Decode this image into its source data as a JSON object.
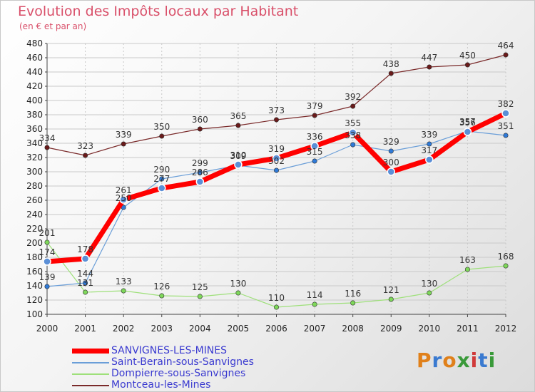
{
  "title": "Evolution des Impôts locaux par Habitant",
  "subtitle": "(en € et par an)",
  "logo": {
    "text": "Proxiti",
    "colors": [
      "#e0801a",
      "#3a7ad0",
      "#e0801a",
      "#3a9a3a",
      "#d03a3a",
      "#3a7ad0",
      "#3a9a3a"
    ]
  },
  "chart_data": {
    "type": "line",
    "title": "Evolution des Impôts locaux par Habitant",
    "subtitle": "(en € et par an)",
    "xlabel": "",
    "ylabel": "",
    "x": [
      "2000",
      "2001",
      "2002",
      "2003",
      "2004",
      "2005",
      "2006",
      "2007",
      "2008",
      "2009",
      "2010",
      "2011",
      "2012"
    ],
    "ylim": [
      100,
      480
    ],
    "yticks": [
      100,
      120,
      140,
      160,
      180,
      200,
      220,
      240,
      260,
      280,
      300,
      320,
      340,
      360,
      380,
      400,
      420,
      440,
      460,
      480
    ],
    "grid": true,
    "legend": "bottom-left",
    "series": [
      {
        "name": "SANVIGNES-LES-MINES",
        "color": "#ff0000",
        "marker": "#5b8fd6",
        "width": 7,
        "radius": 5,
        "values": [
          174,
          178,
          261,
          277,
          286,
          310,
          319,
          336,
          355,
          300,
          317,
          356,
          382
        ]
      },
      {
        "name": "Saint-Berain-sous-Sanvignes",
        "color": "#6a9ed8",
        "marker": "#2f7ad8",
        "width": 1.2,
        "radius": 3.2,
        "values": [
          139,
          144,
          250,
          290,
          299,
          309,
          302,
          315,
          338,
          329,
          339,
          357,
          351
        ]
      },
      {
        "name": "Dompierre-sous-Sanvignes",
        "color": "#9ee07a",
        "marker": "#7ed85a",
        "width": 1.2,
        "radius": 3.2,
        "values": [
          201,
          131,
          133,
          126,
          125,
          130,
          110,
          114,
          116,
          121,
          130,
          163,
          168
        ]
      },
      {
        "name": "Montceau-les-Mines",
        "color": "#7a2a2a",
        "marker": "#6a1a1a",
        "width": 1.2,
        "radius": 3.2,
        "values": [
          334,
          323,
          339,
          350,
          360,
          365,
          373,
          379,
          392,
          438,
          447,
          450,
          464
        ]
      }
    ]
  }
}
